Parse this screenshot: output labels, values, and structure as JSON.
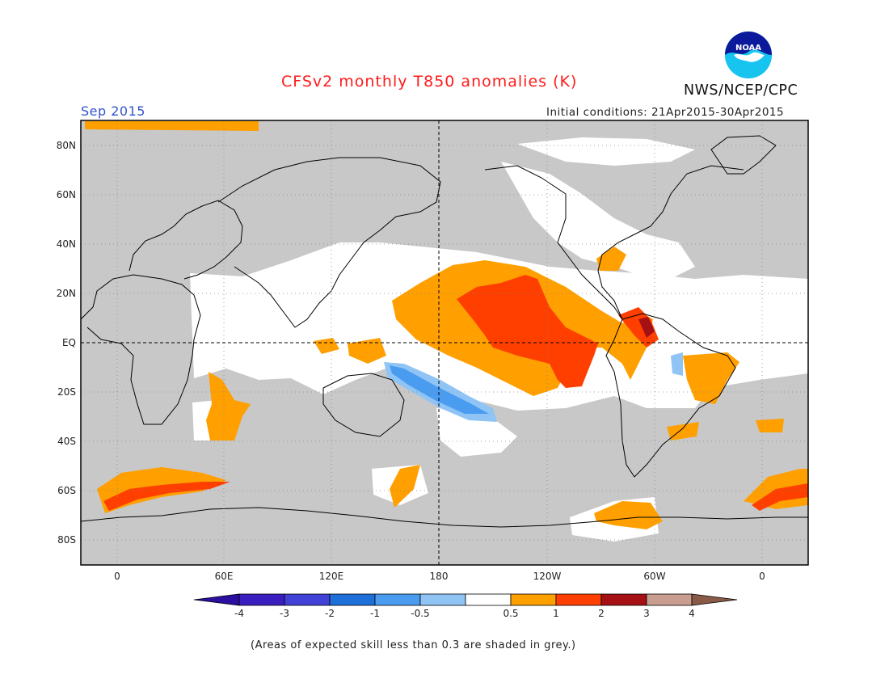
{
  "header": {
    "title": "CFSv2 monthly T850 anomalies (K)",
    "valid_month": "Sep 2015",
    "initial_conditions": "Initial conditions: 21Apr2015-30Apr2015",
    "agency": "NWS/NCEP/CPC",
    "logo_text": "NOAA"
  },
  "map": {
    "lat_labels": [
      "80N",
      "60N",
      "40N",
      "20N",
      "EQ",
      "20S",
      "40S",
      "60S",
      "80S"
    ],
    "lon_labels": [
      "0",
      "60E",
      "120E",
      "180",
      "120W",
      "60W",
      "0"
    ]
  },
  "colorbar": {
    "tick_labels": [
      "-4",
      "-3",
      "-2",
      "-1",
      "-0.5",
      "0.5",
      "1",
      "2",
      "3",
      "4"
    ],
    "colors": [
      "#3b1ebf",
      "#4141d6",
      "#1f6fd8",
      "#4a9cf0",
      "#8fc4f5",
      "#ffffff",
      "#ff9f00",
      "#ff3f00",
      "#a51014",
      "#c99d8f"
    ],
    "low_arrow_color": "#2a0fa0",
    "high_arrow_color": "#8a5a48"
  },
  "colors": {
    "low_skill_grey": "#c8c8c8",
    "title_red": "#ff1a1a",
    "month_blue": "#3355cc"
  },
  "footnote": "(Areas of expected skill less than 0.3 are shaded in grey.)"
}
